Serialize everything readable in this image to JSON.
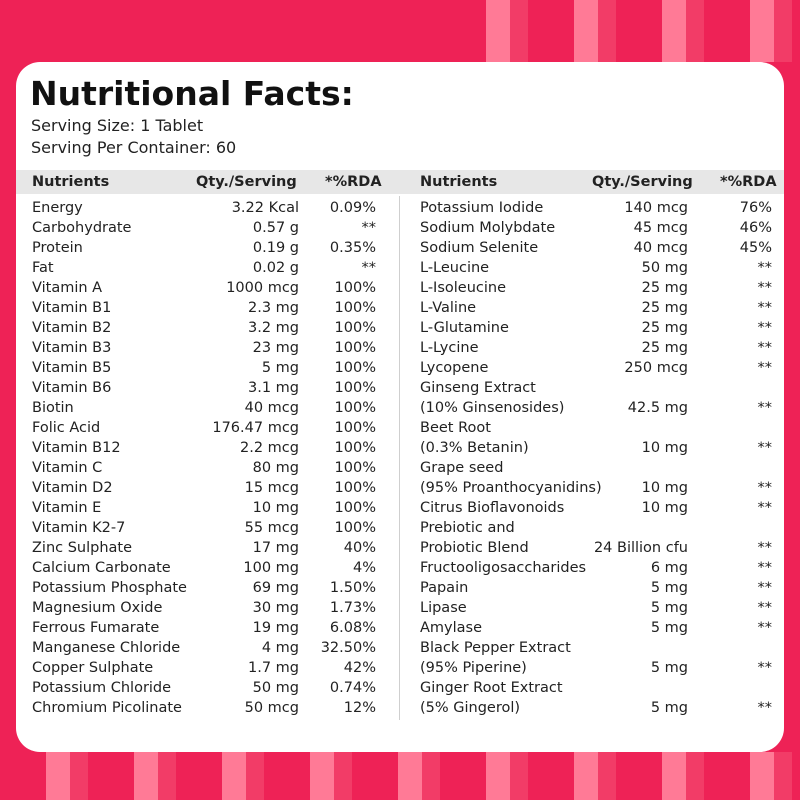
{
  "title": "Nutritional Facts:",
  "serving_size": "Serving Size: 1 Tablet",
  "serving_per_container": "Serving Per Container: 60",
  "headers": {
    "nutrients": "Nutrients",
    "qty": "Qty./Serving",
    "rda": "*%RDA"
  },
  "left_rows": [
    {
      "name": "Energy",
      "qty": "3.22 Kcal",
      "rda": "0.09%"
    },
    {
      "name": "Carbohydrate",
      "qty": "0.57 g",
      "rda": "**"
    },
    {
      "name": "Protein",
      "qty": "0.19 g",
      "rda": "0.35%"
    },
    {
      "name": "Fat",
      "qty": "0.02 g",
      "rda": "**"
    },
    {
      "name": "Vitamin A",
      "qty": "1000 mcg",
      "rda": "100%"
    },
    {
      "name": "Vitamin B1",
      "qty": "2.3 mg",
      "rda": "100%"
    },
    {
      "name": "Vitamin B2",
      "qty": "3.2 mg",
      "rda": "100%"
    },
    {
      "name": "Vitamin B3",
      "qty": "23 mg",
      "rda": "100%"
    },
    {
      "name": "Vitamin B5",
      "qty": "5 mg",
      "rda": "100%"
    },
    {
      "name": "Vitamin B6",
      "qty": "3.1 mg",
      "rda": "100%"
    },
    {
      "name": "Biotin",
      "qty": "40 mcg",
      "rda": "100%"
    },
    {
      "name": "Folic Acid",
      "qty": "176.47 mcg",
      "rda": "100%"
    },
    {
      "name": "Vitamin B12",
      "qty": "2.2 mcg",
      "rda": "100%"
    },
    {
      "name": "Vitamin C",
      "qty": "80 mg",
      "rda": "100%"
    },
    {
      "name": "Vitamin D2",
      "qty": "15 mcg",
      "rda": "100%"
    },
    {
      "name": "Vitamin E",
      "qty": "10 mg",
      "rda": "100%"
    },
    {
      "name": "Vitamin K2-7",
      "qty": "55 mcg",
      "rda": "100%"
    },
    {
      "name": "Zinc Sulphate",
      "qty": "17 mg",
      "rda": "40%"
    },
    {
      "name": "Calcium Carbonate",
      "qty": "100 mg",
      "rda": "4%"
    },
    {
      "name": "Potassium Phosphate",
      "qty": "69 mg",
      "rda": "1.50%"
    },
    {
      "name": "Magnesium Oxide",
      "qty": "30 mg",
      "rda": "1.73%"
    },
    {
      "name": "Ferrous Fumarate",
      "qty": "19 mg",
      "rda": "6.08%"
    },
    {
      "name": "Manganese Chloride",
      "qty": "4 mg",
      "rda": "32.50%"
    },
    {
      "name": "Copper Sulphate",
      "qty": "1.7 mg",
      "rda": "42%"
    },
    {
      "name": "Potassium Chloride",
      "qty": "50 mg",
      "rda": "0.74%"
    },
    {
      "name": "Chromium Picolinate",
      "qty": "50 mcg",
      "rda": "12%"
    }
  ],
  "right_rows": [
    {
      "name": "Potassium Iodide",
      "qty": "140 mcg",
      "rda": "76%"
    },
    {
      "name": "Sodium Molybdate",
      "qty": "45 mcg",
      "rda": "46%"
    },
    {
      "name": "Sodium Selenite",
      "qty": "40 mcg",
      "rda": "45%"
    },
    {
      "name": "L-Leucine",
      "qty": "50 mg",
      "rda": "**"
    },
    {
      "name": "L-Isoleucine",
      "qty": "25 mg",
      "rda": "**"
    },
    {
      "name": "L-Valine",
      "qty": "25 mg",
      "rda": "**"
    },
    {
      "name": "L-Glutamine",
      "qty": "25 mg",
      "rda": "**"
    },
    {
      "name": "L-Lycine",
      "qty": "25 mg",
      "rda": "**"
    },
    {
      "name": "Lycopene",
      "qty": "250 mcg",
      "rda": "**"
    },
    {
      "name": "Ginseng Extract",
      "qty": "",
      "rda": ""
    },
    {
      "name": "(10% Ginsenosides)",
      "qty": "42.5 mg",
      "rda": "**"
    },
    {
      "name": "Beet Root",
      "qty": "",
      "rda": ""
    },
    {
      "name": "(0.3% Betanin)",
      "qty": "10 mg",
      "rda": "**"
    },
    {
      "name": "Grape seed",
      "qty": "",
      "rda": ""
    },
    {
      "name": "(95% Proanthocyanidins)",
      "qty": "10 mg",
      "rda": "**"
    },
    {
      "name": "Citrus Bioflavonoids",
      "qty": "10 mg",
      "rda": "**"
    },
    {
      "name": "Prebiotic and",
      "qty": "",
      "rda": ""
    },
    {
      "name": "Probiotic Blend",
      "qty": "24 Billion cfu",
      "rda": "**"
    },
    {
      "name": "Fructooligosaccharides",
      "qty": "6 mg",
      "rda": "**"
    },
    {
      "name": "Papain",
      "qty": "5 mg",
      "rda": "**"
    },
    {
      "name": "Lipase",
      "qty": "5 mg",
      "rda": "**"
    },
    {
      "name": "Amylase",
      "qty": "5 mg",
      "rda": "**"
    },
    {
      "name": "Black Pepper Extract",
      "qty": "",
      "rda": ""
    },
    {
      "name": "(95% Piperine)",
      "qty": "5 mg",
      "rda": "**"
    },
    {
      "name": "Ginger Root Extract",
      "qty": "",
      "rda": ""
    },
    {
      "name": "(5% Gingerol)",
      "qty": "5 mg",
      "rda": "**"
    }
  ],
  "colors": {
    "background": "#ee2256",
    "stripe": "#ff7a96",
    "card": "#ffffff",
    "header_bg": "#e7e7e7"
  }
}
